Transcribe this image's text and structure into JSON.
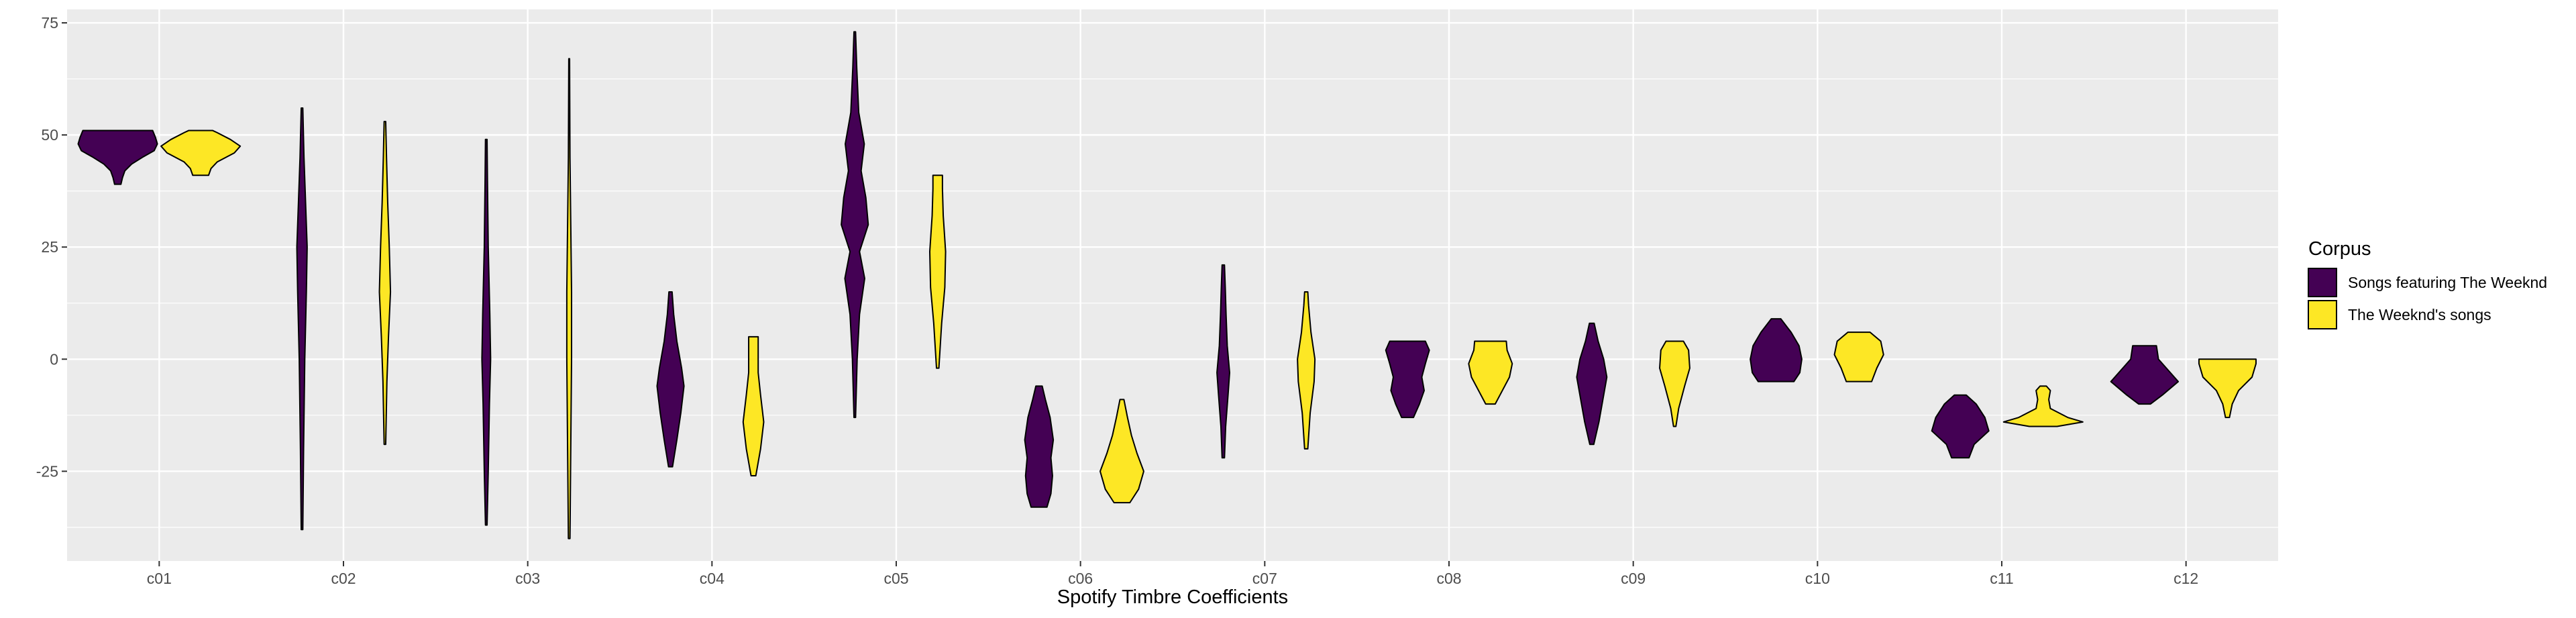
{
  "chart_data": {
    "type": "violin",
    "xlabel": "Spotify Timbre Coefficients",
    "ylabel": "",
    "categories": [
      "c01",
      "c02",
      "c03",
      "c04",
      "c05",
      "c06",
      "c07",
      "c08",
      "c09",
      "c10",
      "c11",
      "c12"
    ],
    "y_ticks": [
      "75",
      "50",
      "25",
      "0",
      "-25"
    ],
    "ylim": [
      -45,
      78
    ],
    "grid": true,
    "legend_position": "right",
    "legend": {
      "title": "Corpus",
      "entries": [
        {
          "label": "Songs featuring The Weeknd",
          "color": "#440154"
        },
        {
          "label": "The Weeknd's songs",
          "color": "#fde725"
        }
      ]
    },
    "series": [
      {
        "name": "Songs featuring The Weeknd",
        "color": "#440154",
        "violins": [
          {
            "min": 39,
            "max": 51,
            "profile": [
              [
                39,
                0.08
              ],
              [
                40.5,
                0.12
              ],
              [
                42,
                0.18
              ],
              [
                43.5,
                0.35
              ],
              [
                45,
                0.62
              ],
              [
                46.5,
                0.92
              ],
              [
                48,
                1.0
              ],
              [
                49.5,
                0.95
              ],
              [
                51,
                0.88
              ]
            ]
          },
          {
            "min": -38,
            "max": 56,
            "profile": [
              [
                -38,
                0.02
              ],
              [
                -20,
                0.04
              ],
              [
                0,
                0.07
              ],
              [
                15,
                0.11
              ],
              [
                25,
                0.13
              ],
              [
                35,
                0.09
              ],
              [
                45,
                0.05
              ],
              [
                56,
                0.02
              ]
            ]
          },
          {
            "min": -37,
            "max": 49,
            "profile": [
              [
                -37,
                0.02
              ],
              [
                -25,
                0.05
              ],
              [
                -10,
                0.08
              ],
              [
                0,
                0.11
              ],
              [
                10,
                0.09
              ],
              [
                25,
                0.05
              ],
              [
                40,
                0.03
              ],
              [
                49,
                0.02
              ]
            ]
          },
          {
            "min": -24,
            "max": 15,
            "profile": [
              [
                -24,
                0.05
              ],
              [
                -18,
                0.16
              ],
              [
                -12,
                0.26
              ],
              [
                -6,
                0.34
              ],
              [
                -2,
                0.28
              ],
              [
                4,
                0.16
              ],
              [
                10,
                0.08
              ],
              [
                15,
                0.04
              ]
            ]
          },
          {
            "min": -13,
            "max": 73,
            "profile": [
              [
                -13,
                0.02
              ],
              [
                0,
                0.06
              ],
              [
                10,
                0.12
              ],
              [
                18,
                0.25
              ],
              [
                24,
                0.12
              ],
              [
                30,
                0.34
              ],
              [
                36,
                0.28
              ],
              [
                42,
                0.16
              ],
              [
                48,
                0.24
              ],
              [
                55,
                0.1
              ],
              [
                65,
                0.05
              ],
              [
                73,
                0.02
              ]
            ]
          },
          {
            "min": -33,
            "max": -6,
            "profile": [
              [
                -33,
                0.2
              ],
              [
                -30,
                0.3
              ],
              [
                -26,
                0.34
              ],
              [
                -22,
                0.3
              ],
              [
                -18,
                0.36
              ],
              [
                -13,
                0.28
              ],
              [
                -9,
                0.16
              ],
              [
                -6,
                0.08
              ]
            ]
          },
          {
            "min": -22,
            "max": 21,
            "profile": [
              [
                -22,
                0.03
              ],
              [
                -15,
                0.06
              ],
              [
                -8,
                0.12
              ],
              [
                -3,
                0.16
              ],
              [
                3,
                0.1
              ],
              [
                10,
                0.07
              ],
              [
                16,
                0.05
              ],
              [
                21,
                0.03
              ]
            ]
          },
          {
            "min": -13,
            "max": 4,
            "profile": [
              [
                -13,
                0.15
              ],
              [
                -10,
                0.3
              ],
              [
                -7,
                0.42
              ],
              [
                -4,
                0.36
              ],
              [
                -1,
                0.45
              ],
              [
                2,
                0.55
              ],
              [
                4,
                0.45
              ]
            ]
          },
          {
            "min": -19,
            "max": 8,
            "profile": [
              [
                -19,
                0.05
              ],
              [
                -14,
                0.18
              ],
              [
                -9,
                0.28
              ],
              [
                -4,
                0.38
              ],
              [
                0,
                0.3
              ],
              [
                4,
                0.16
              ],
              [
                8,
                0.06
              ]
            ]
          },
          {
            "min": -5,
            "max": 9,
            "profile": [
              [
                -5,
                0.45
              ],
              [
                -3,
                0.6
              ],
              [
                0,
                0.65
              ],
              [
                3,
                0.58
              ],
              [
                6,
                0.38
              ],
              [
                9,
                0.12
              ]
            ]
          },
          {
            "min": -22,
            "max": -8,
            "profile": [
              [
                -22,
                0.22
              ],
              [
                -19,
                0.35
              ],
              [
                -16,
                0.72
              ],
              [
                -13,
                0.62
              ],
              [
                -10,
                0.4
              ],
              [
                -8,
                0.15
              ]
            ]
          },
          {
            "min": -10,
            "max": 3,
            "profile": [
              [
                -10,
                0.15
              ],
              [
                -8,
                0.45
              ],
              [
                -5,
                0.85
              ],
              [
                -2,
                0.55
              ],
              [
                0,
                0.35
              ],
              [
                3,
                0.3
              ]
            ]
          }
        ]
      },
      {
        "name": "The Weeknd's songs",
        "color": "#fde725",
        "violins": [
          {
            "min": 41,
            "max": 51,
            "profile": [
              [
                41,
                0.2
              ],
              [
                42.5,
                0.26
              ],
              [
                44,
                0.42
              ],
              [
                46,
                0.85
              ],
              [
                47.5,
                1.0
              ],
              [
                49,
                0.75
              ],
              [
                50.5,
                0.42
              ],
              [
                51,
                0.3
              ]
            ]
          },
          {
            "min": -19,
            "max": 53,
            "profile": [
              [
                -19,
                0.02
              ],
              [
                -5,
                0.05
              ],
              [
                5,
                0.09
              ],
              [
                15,
                0.14
              ],
              [
                25,
                0.11
              ],
              [
                35,
                0.07
              ],
              [
                45,
                0.04
              ],
              [
                53,
                0.02
              ]
            ]
          },
          {
            "min": -40,
            "max": 67,
            "profile": [
              [
                -40,
                0.02
              ],
              [
                -20,
                0.04
              ],
              [
                0,
                0.06
              ],
              [
                15,
                0.06
              ],
              [
                30,
                0.04
              ],
              [
                45,
                0.02
              ],
              [
                67,
                0.01
              ]
            ]
          },
          {
            "min": -26,
            "max": 5,
            "profile": [
              [
                -26,
                0.06
              ],
              [
                -20,
                0.18
              ],
              [
                -14,
                0.26
              ],
              [
                -8,
                0.18
              ],
              [
                -3,
                0.12
              ],
              [
                1,
                0.12
              ],
              [
                5,
                0.12
              ]
            ]
          },
          {
            "min": -2,
            "max": 41,
            "profile": [
              [
                -2,
                0.03
              ],
              [
                8,
                0.1
              ],
              [
                16,
                0.18
              ],
              [
                24,
                0.2
              ],
              [
                32,
                0.14
              ],
              [
                38,
                0.12
              ],
              [
                41,
                0.12
              ]
            ]
          },
          {
            "min": -32,
            "max": -9,
            "profile": [
              [
                -32,
                0.2
              ],
              [
                -29,
                0.42
              ],
              [
                -25,
                0.55
              ],
              [
                -21,
                0.38
              ],
              [
                -17,
                0.24
              ],
              [
                -13,
                0.14
              ],
              [
                -9,
                0.05
              ]
            ]
          },
          {
            "min": -20,
            "max": 15,
            "profile": [
              [
                -20,
                0.04
              ],
              [
                -12,
                0.1
              ],
              [
                -5,
                0.2
              ],
              [
                0,
                0.22
              ],
              [
                6,
                0.12
              ],
              [
                12,
                0.06
              ],
              [
                15,
                0.04
              ]
            ]
          },
          {
            "min": -10,
            "max": 4,
            "profile": [
              [
                -10,
                0.12
              ],
              [
                -7,
                0.3
              ],
              [
                -4,
                0.48
              ],
              [
                -1,
                0.55
              ],
              [
                2,
                0.42
              ],
              [
                4,
                0.4
              ]
            ]
          },
          {
            "min": -15,
            "max": 4,
            "profile": [
              [
                -15,
                0.03
              ],
              [
                -11,
                0.1
              ],
              [
                -6,
                0.25
              ],
              [
                -2,
                0.38
              ],
              [
                2,
                0.35
              ],
              [
                4,
                0.22
              ]
            ]
          },
          {
            "min": -5,
            "max": 6,
            "profile": [
              [
                -5,
                0.32
              ],
              [
                -2,
                0.45
              ],
              [
                1,
                0.62
              ],
              [
                4,
                0.55
              ],
              [
                6,
                0.28
              ]
            ]
          },
          {
            "min": -15,
            "max": -6,
            "profile": [
              [
                -15,
                0.35
              ],
              [
                -14,
                1.0
              ],
              [
                -13,
                0.62
              ],
              [
                -11,
                0.18
              ],
              [
                -9,
                0.14
              ],
              [
                -7,
                0.18
              ],
              [
                -6,
                0.08
              ]
            ]
          },
          {
            "min": -13,
            "max": 0,
            "profile": [
              [
                -13,
                0.05
              ],
              [
                -10,
                0.12
              ],
              [
                -7,
                0.28
              ],
              [
                -4,
                0.62
              ],
              [
                -1,
                0.72
              ],
              [
                0,
                0.72
              ]
            ]
          }
        ]
      }
    ]
  }
}
